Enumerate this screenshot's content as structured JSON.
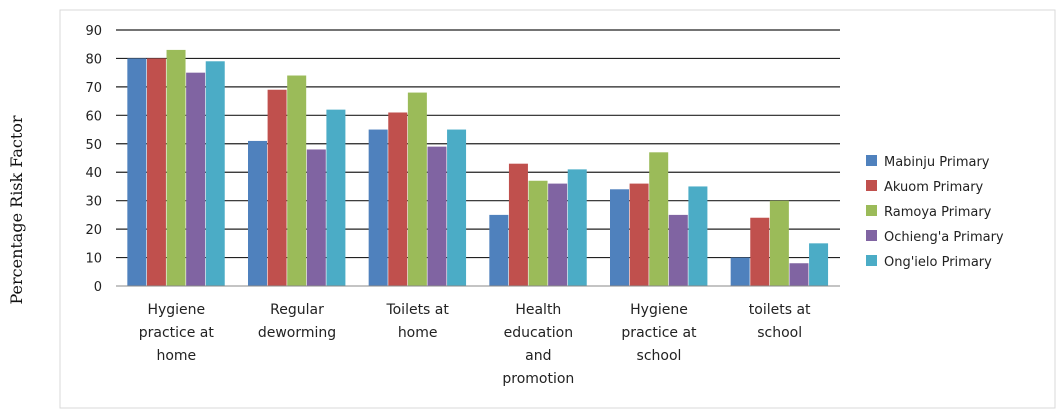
{
  "chart_data": {
    "type": "bar",
    "title": "",
    "xlabel": "",
    "ylabel": "Percentage Risk Factor",
    "ylim": [
      0,
      90
    ],
    "yticks": [
      0,
      10,
      20,
      30,
      40,
      50,
      60,
      70,
      80,
      90
    ],
    "grid": true,
    "legend_position": "right",
    "categories": [
      [
        "Hygiene",
        "practice at",
        "home"
      ],
      [
        "Regular",
        "deworming"
      ],
      [
        "Toilets at",
        "home"
      ],
      [
        "Health",
        "education",
        "and",
        "promotion"
      ],
      [
        "Hygiene",
        "practice at",
        "school"
      ],
      [
        "toilets at",
        "school"
      ]
    ],
    "series": [
      {
        "name": "Mabinju Primary",
        "color": "#4f81bd",
        "values": [
          80,
          51,
          55,
          25,
          34,
          10
        ]
      },
      {
        "name": "Akuom Primary",
        "color": "#c0504d",
        "values": [
          80,
          69,
          61,
          43,
          36,
          24
        ]
      },
      {
        "name": "Ramoya Primary",
        "color": "#9bbb59",
        "values": [
          83,
          74,
          68,
          37,
          47,
          30
        ]
      },
      {
        "name": "Ochieng'a Primary",
        "color": "#8064a2",
        "values": [
          75,
          48,
          49,
          36,
          25,
          8
        ]
      },
      {
        "name": "Ong'ielo Primary",
        "color": "#4bacc6",
        "values": [
          79,
          62,
          55,
          41,
          35,
          15
        ]
      }
    ]
  }
}
